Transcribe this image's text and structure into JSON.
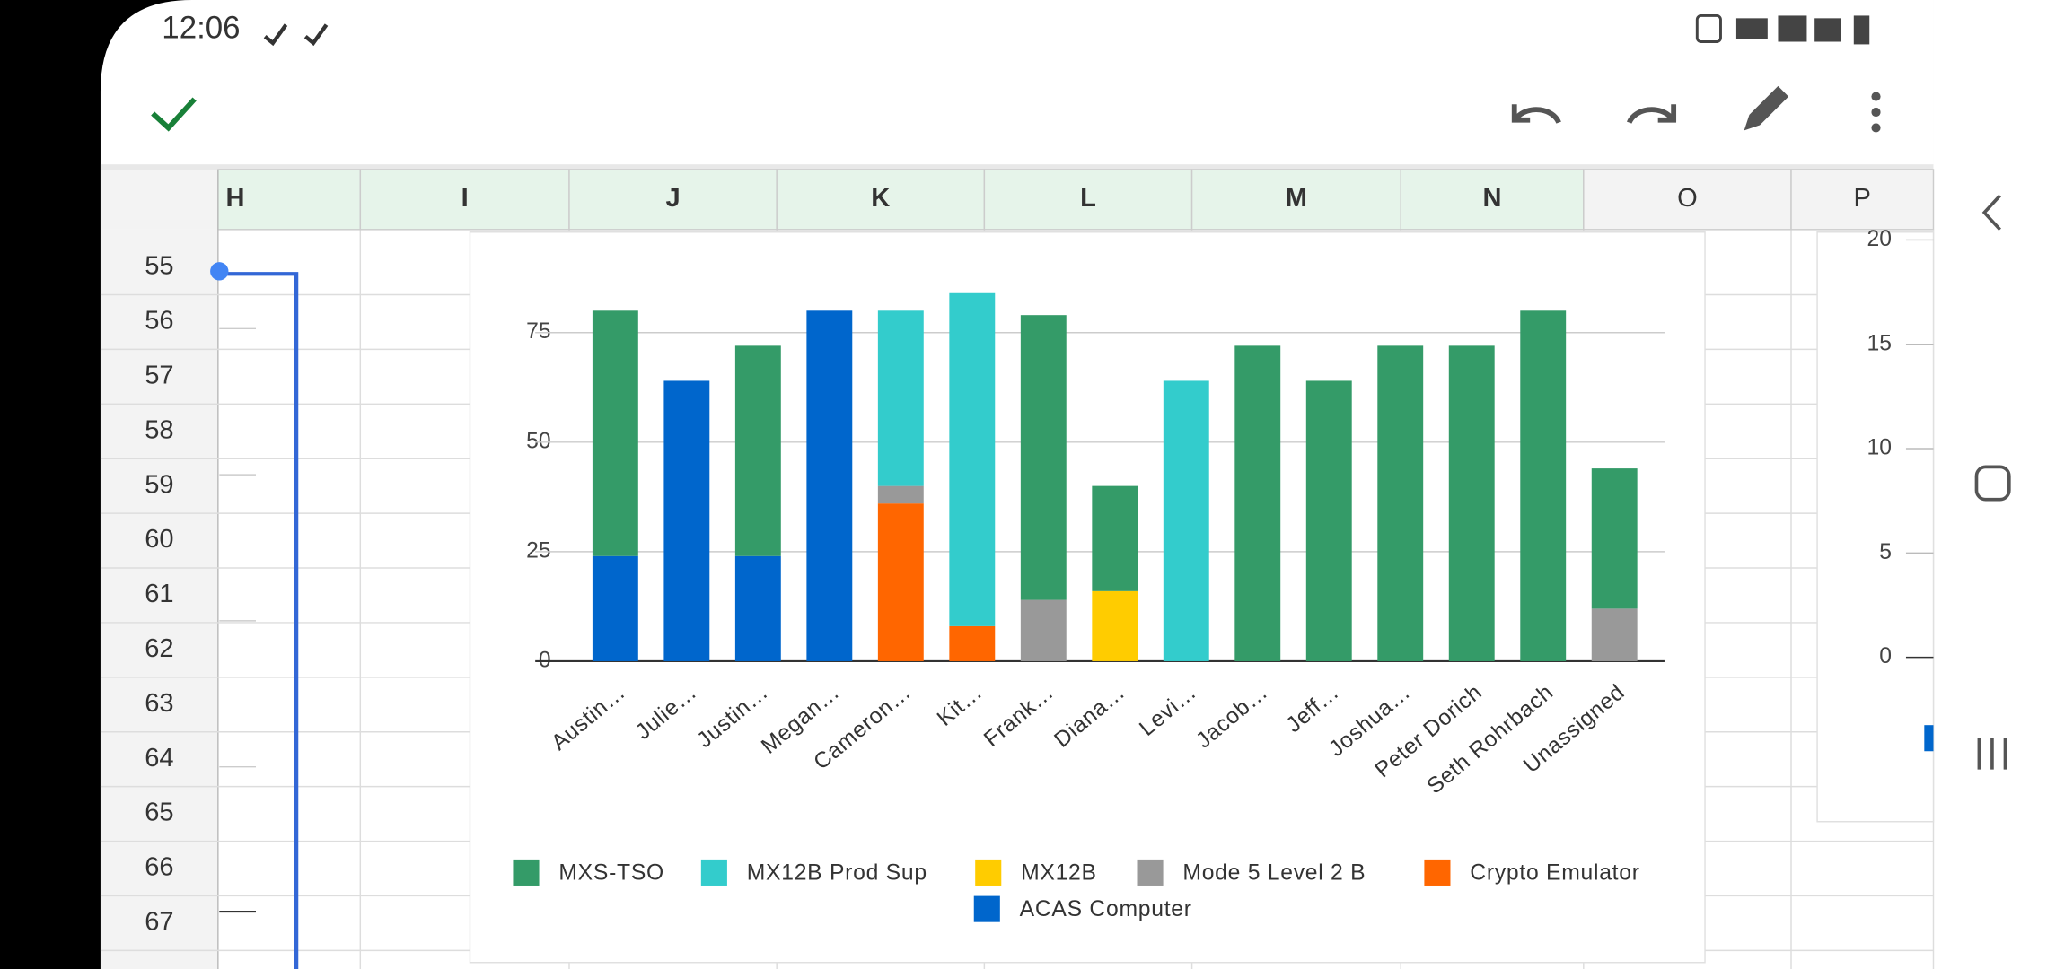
{
  "status_bar": {
    "time": "12:06"
  },
  "sheet": {
    "columns": [
      "H",
      "I",
      "J",
      "K",
      "L",
      "M",
      "N",
      "O",
      "P"
    ],
    "rows": [
      55,
      56,
      57,
      58,
      59,
      60,
      61,
      62,
      63,
      64,
      65,
      66,
      67
    ]
  },
  "chart_data": [
    {
      "type": "bar",
      "stacked": true,
      "categories": [
        "Austin…",
        "Julie…",
        "Justin…",
        "Megan…",
        "Cameron…",
        "Kit…",
        "Frank…",
        "Diana…",
        "Levi…",
        "Jacob…",
        "Jeff…",
        "Joshua…",
        "Peter Dorich",
        "Seth Rohrbach",
        "Unassigned"
      ],
      "series": [
        {
          "name": "MXS-TSO",
          "color": "#349b68",
          "values": [
            56,
            0,
            48,
            0,
            0,
            0,
            65,
            24,
            0,
            72,
            64,
            72,
            72,
            80,
            32
          ]
        },
        {
          "name": "MX12B Prod Sup",
          "color": "#33cccc",
          "values": [
            0,
            0,
            0,
            0,
            40,
            76,
            0,
            0,
            64,
            0,
            0,
            0,
            0,
            0,
            0
          ]
        },
        {
          "name": "MX12B",
          "color": "#ffcc00",
          "values": [
            0,
            0,
            0,
            0,
            0,
            0,
            0,
            16,
            0,
            0,
            0,
            0,
            0,
            0,
            0
          ]
        },
        {
          "name": "Mode 5 Level 2 B",
          "color": "#999999",
          "values": [
            0,
            0,
            0,
            0,
            4,
            0,
            14,
            0,
            0,
            0,
            0,
            0,
            0,
            0,
            12
          ]
        },
        {
          "name": "Crypto Emulator",
          "color": "#ff6600",
          "values": [
            0,
            0,
            0,
            0,
            36,
            8,
            0,
            0,
            0,
            0,
            0,
            0,
            0,
            0,
            0
          ]
        },
        {
          "name": "ACAS Computer",
          "color": "#0066cc",
          "values": [
            24,
            64,
            24,
            80,
            0,
            0,
            0,
            0,
            0,
            0,
            0,
            0,
            0,
            0,
            0
          ]
        }
      ],
      "ylim": [
        0,
        84
      ],
      "yticks": [
        0,
        25,
        50,
        75
      ],
      "grid": true,
      "legend": "bottom"
    },
    {
      "type": "bar",
      "ylim": [
        0,
        20
      ],
      "yticks": [
        0,
        5,
        10,
        15,
        20
      ]
    }
  ]
}
